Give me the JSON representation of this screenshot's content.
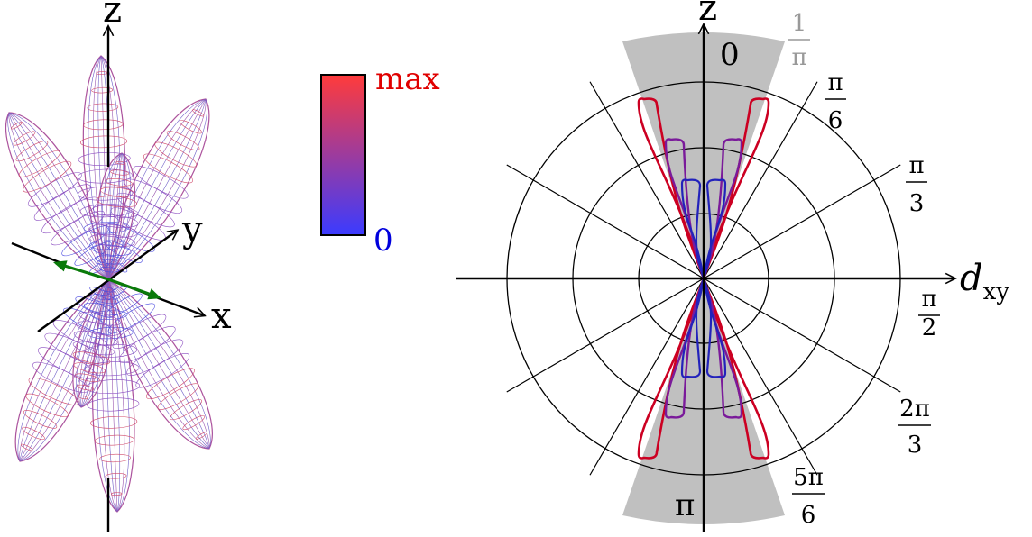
{
  "figure_3d": {
    "axis_labels": {
      "z": "z",
      "y": "y",
      "x": "x"
    }
  },
  "colorbar": {
    "max_label": "max",
    "min_label": "0",
    "color_max": "#ff3b3b",
    "color_min": "#3b3bff",
    "max_label_color": "#e00000",
    "min_label_color": "#0000dd"
  },
  "polar_plot": {
    "vertical_axis_label": "z",
    "horizontal_axis_label_main": "d",
    "horizontal_axis_label_sub": "xy",
    "angle_zero_label": "0",
    "angle_pi_label": "π",
    "angle_labels": [
      {
        "numerator": "π",
        "denominator": "6"
      },
      {
        "numerator": "π",
        "denominator": "3"
      },
      {
        "numerator": "π",
        "denominator": "2"
      },
      {
        "numerator": "2π",
        "denominator": "3"
      },
      {
        "numerator": "5π",
        "denominator": "6"
      }
    ],
    "sector_label": {
      "numerator": "1",
      "denominator": "π"
    },
    "colors": {
      "sector_fill": "#c0c0c0",
      "sector_label": "#999999",
      "curve_outer": "#cc0022",
      "curve_middle": "#7a1a9a",
      "curve_inner": "#2222bb",
      "green_arrow": "#0a7a0a"
    }
  }
}
